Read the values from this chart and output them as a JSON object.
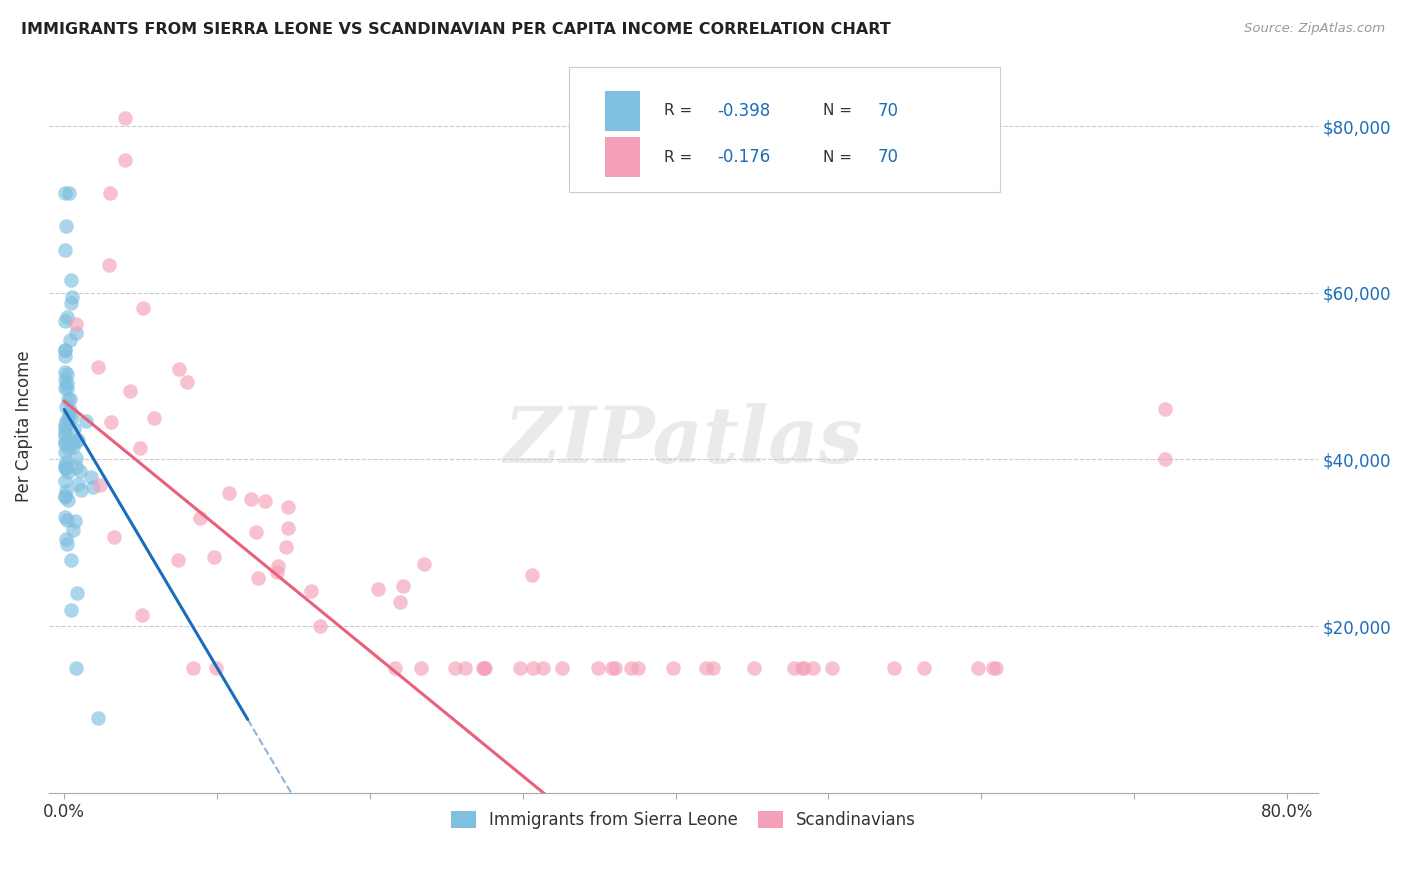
{
  "title": "IMMIGRANTS FROM SIERRA LEONE VS SCANDINAVIAN PER CAPITA INCOME CORRELATION CHART",
  "source": "Source: ZipAtlas.com",
  "ylabel": "Per Capita Income",
  "legend_label1": "Immigrants from Sierra Leone",
  "legend_label2": "Scandinavians",
  "color_blue": "#7fbfdf",
  "color_pink": "#f4a0b8",
  "color_blue_line": "#1a6dba",
  "color_pink_line": "#e8607a",
  "color_text_blue": "#1a6dba",
  "color_text_dark": "#333333",
  "watermark": "ZIPatlas",
  "blue_intercept": 46000,
  "blue_slope": -900000,
  "pink_intercept": 47500,
  "pink_slope": -130000
}
